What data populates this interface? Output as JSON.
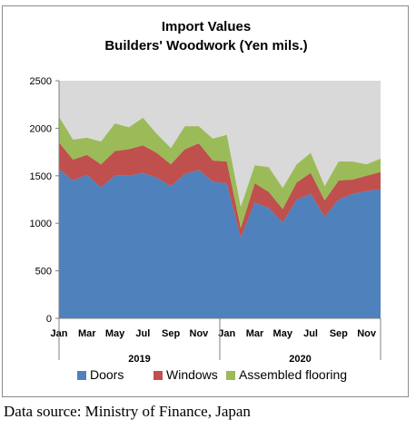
{
  "chart_data": {
    "type": "area",
    "stacked": true,
    "title": "Import Values",
    "subtitle": "Builders' Woodwork (Yen mils.)",
    "x": [
      "Jan",
      "Feb",
      "Mar",
      "Apr",
      "May",
      "Jun",
      "Jul",
      "Aug",
      "Sep",
      "Oct",
      "Nov",
      "Dec",
      "Jan",
      "Feb",
      "Mar",
      "Apr",
      "May",
      "Jun",
      "Jul",
      "Aug",
      "Sep",
      "Oct",
      "Nov",
      "Dec"
    ],
    "x_tick_labels": [
      "Jan",
      "Mar",
      "May",
      "Jul",
      "Sep",
      "Nov",
      "Jan",
      "Mar",
      "May",
      "Jul",
      "Sep",
      "Nov"
    ],
    "year_labels": [
      "2019",
      "2020"
    ],
    "ylim": [
      0,
      2500
    ],
    "y_ticks": [
      "0",
      "500",
      "1000",
      "1500",
      "2000",
      "2500"
    ],
    "grid": false,
    "legend_position": "bottom",
    "series": [
      {
        "name": "Doors",
        "color": "#4f81bd",
        "values": [
          1570,
          1450,
          1510,
          1380,
          1500,
          1500,
          1530,
          1480,
          1390,
          1520,
          1560,
          1440,
          1420,
          850,
          1220,
          1160,
          1010,
          1250,
          1310,
          1070,
          1250,
          1310,
          1340,
          1360
        ]
      },
      {
        "name": "Windows",
        "color": "#c0504d",
        "values": [
          280,
          220,
          210,
          240,
          260,
          280,
          290,
          260,
          230,
          260,
          280,
          220,
          230,
          100,
          200,
          170,
          140,
          180,
          220,
          170,
          200,
          150,
          160,
          180
        ]
      },
      {
        "name": "Assembled flooring",
        "color": "#9bbb59",
        "values": [
          270,
          210,
          180,
          240,
          290,
          230,
          290,
          200,
          170,
          240,
          180,
          230,
          280,
          220,
          190,
          260,
          220,
          190,
          210,
          150,
          200,
          190,
          120,
          140
        ]
      }
    ],
    "plot_background": "#d9d9d9"
  },
  "footer": {
    "source": "Data source: Ministry of Finance, Japan"
  }
}
